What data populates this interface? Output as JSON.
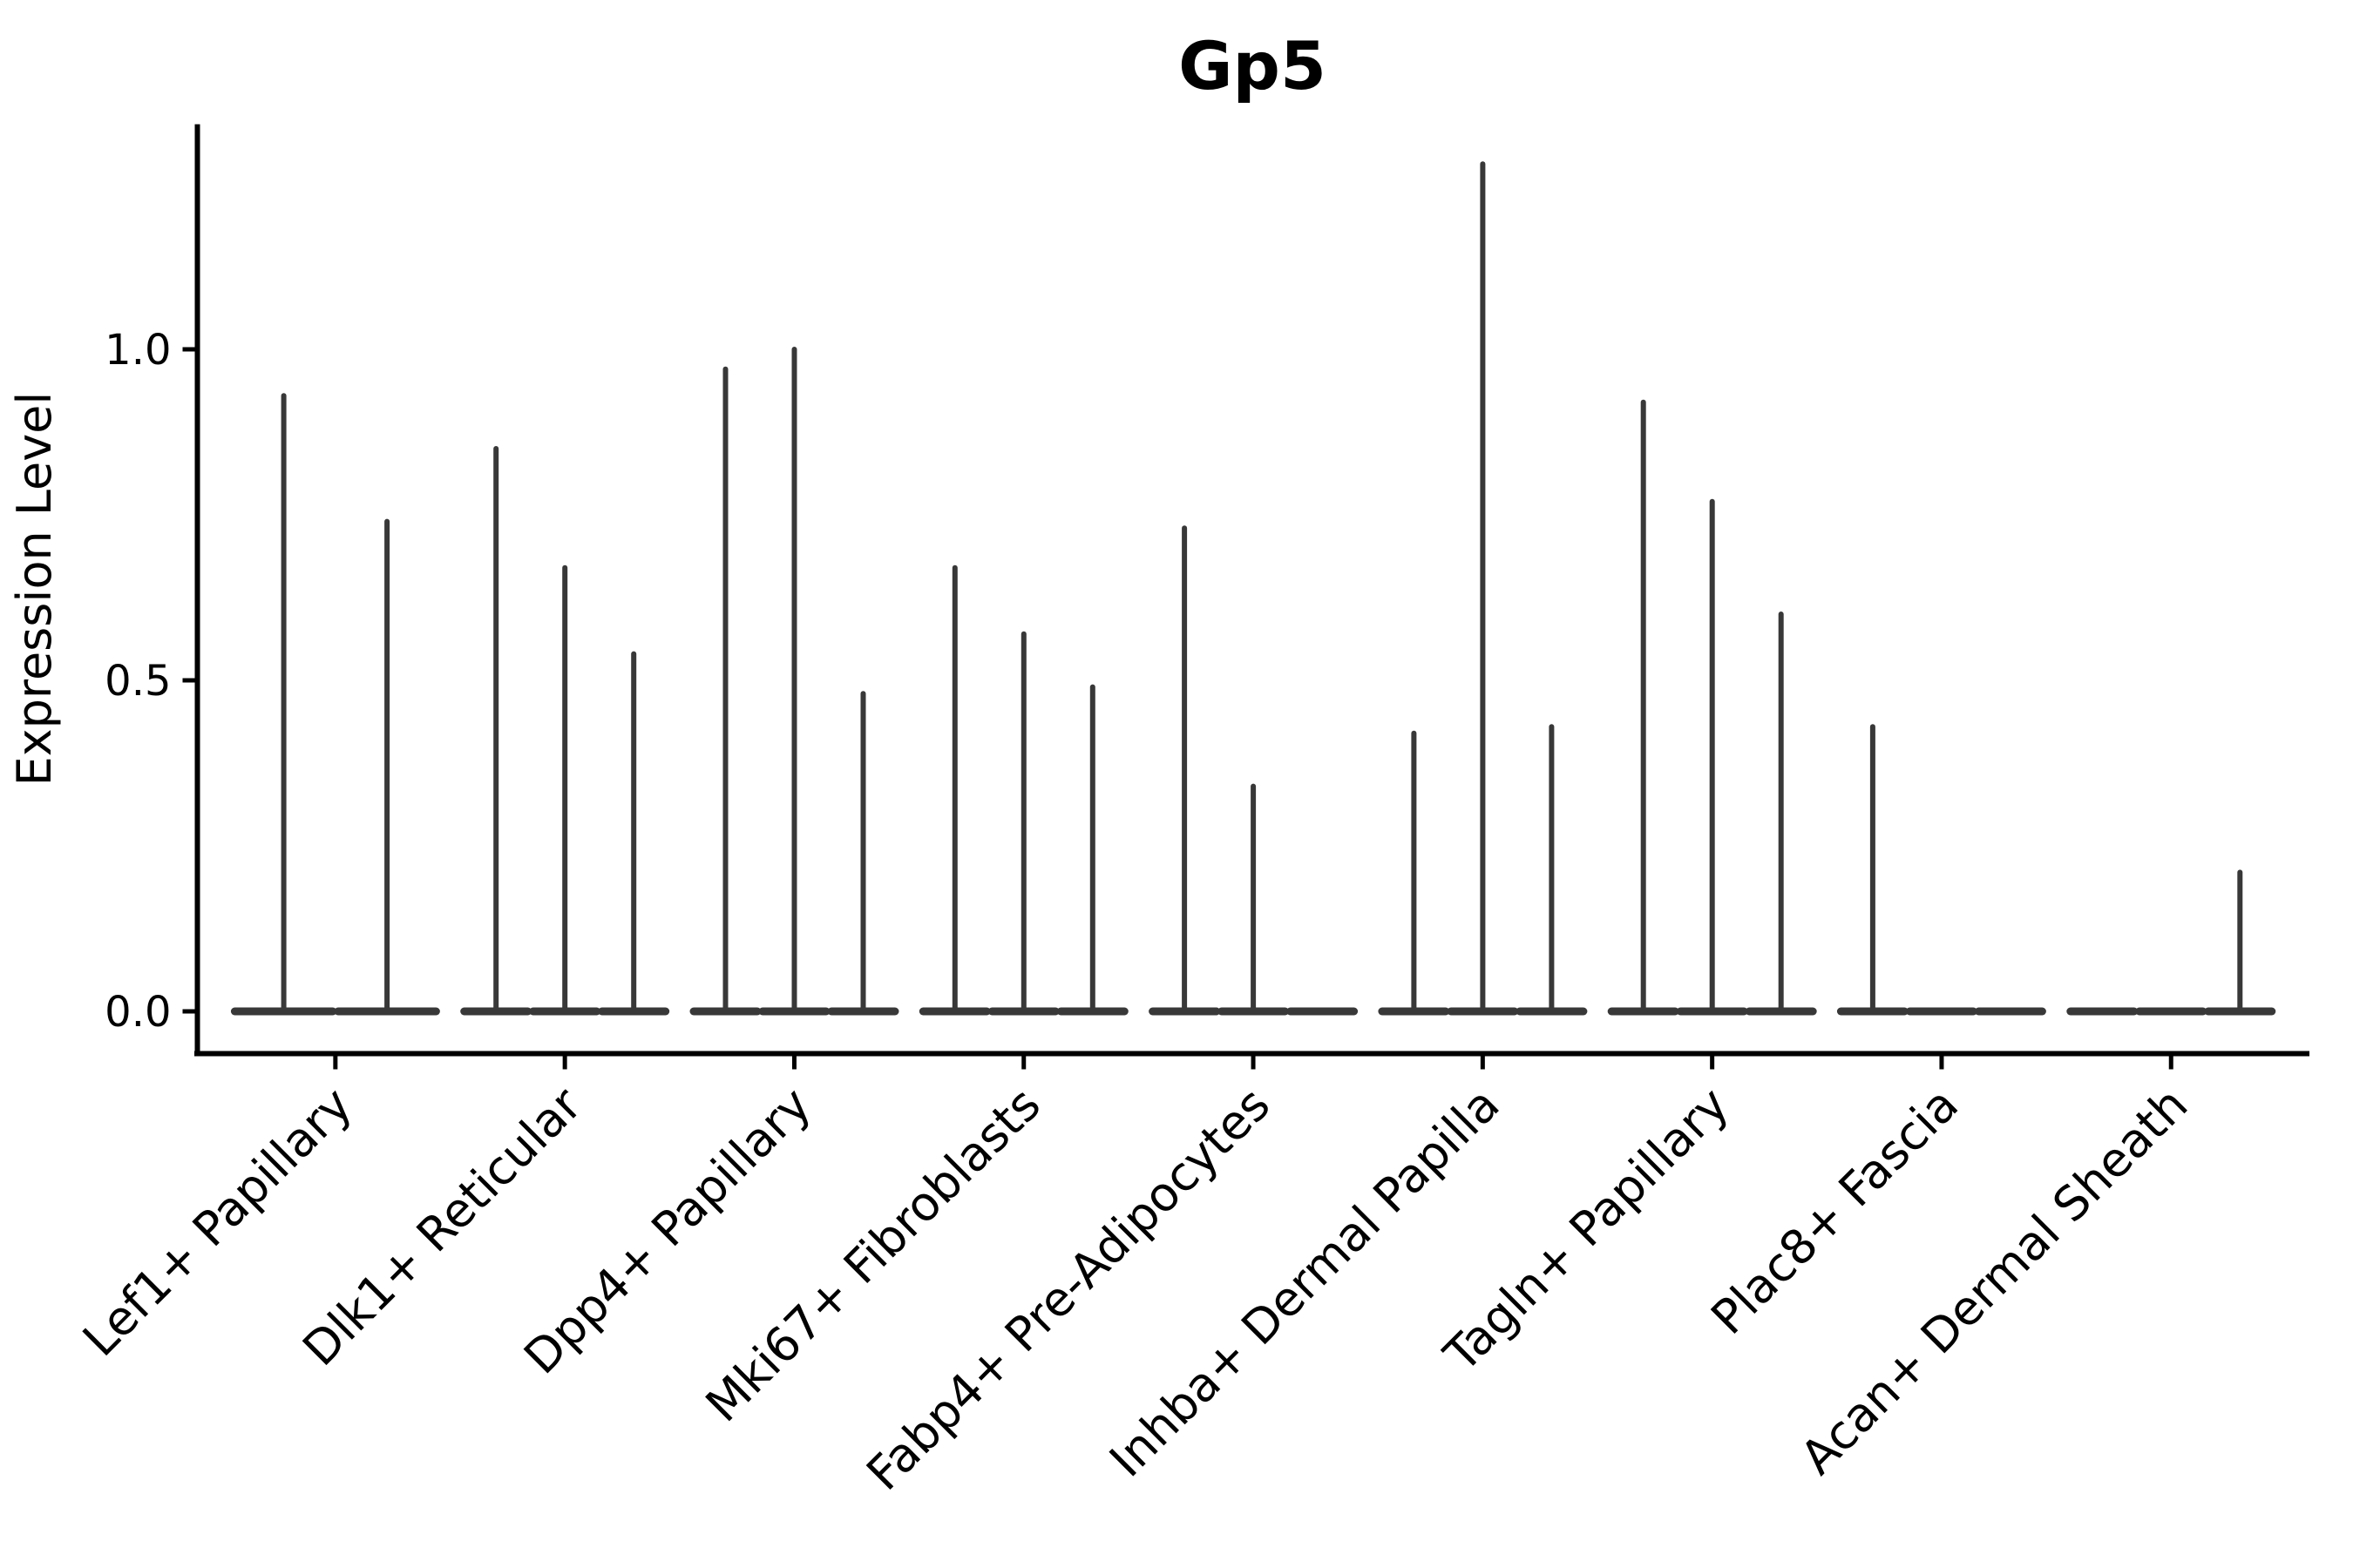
{
  "title": "Gp5",
  "y_axis": {
    "label": "Expression Level",
    "tick_labels": [
      "0.0",
      "0.5",
      "1.0"
    ],
    "tick_values": [
      0.0,
      0.5,
      1.0
    ]
  },
  "x_axis": {
    "label": "",
    "tick_labels": [
      "Lef1+ Papillary",
      "Dlk1+ Reticular",
      "Dpp4+ Papillary",
      "Mki67+ Fibroblasts",
      "Fabp4+ Pre-Adipocytes",
      "Inhba+ Dermal Papilla",
      "Tagln+ Papillary",
      "Plac8+ Fascia",
      "Acan+ Dermal Sheath"
    ]
  },
  "colors": {
    "violin": "#383838",
    "axis": "#000000",
    "background": "#ffffff"
  },
  "chart_data": {
    "type": "violin",
    "title": "Gp5",
    "xlabel": "",
    "ylabel": "Expression Level",
    "ylim": [
      0,
      1.34
    ],
    "yticks": [
      0.0,
      0.5,
      1.0
    ],
    "grid": false,
    "legend_position": "none",
    "style_note": "sparse single-cell expression violins: wide flat base at 0 with narrow spike up to group max",
    "categories": [
      "Lef1+ Papillary",
      "Dlk1+ Reticular",
      "Dpp4+ Papillary",
      "Mki67+ Fibroblasts",
      "Fabp4+ Pre-Adipocytes",
      "Inhba+ Dermal Papilla",
      "Tagln+ Papillary",
      "Plac8+ Fascia",
      "Acan+ Dermal Sheath"
    ],
    "series": [
      {
        "category": "Lef1+ Papillary",
        "group_max_expression": [
          0.93,
          0.74
        ]
      },
      {
        "category": "Dlk1+ Reticular",
        "group_max_expression": [
          0.85,
          0.67,
          0.54
        ]
      },
      {
        "category": "Dpp4+ Papillary",
        "group_max_expression": [
          0.97,
          1.0,
          0.48
        ]
      },
      {
        "category": "Mki67+ Fibroblasts",
        "group_max_expression": [
          0.67,
          0.57,
          0.49
        ]
      },
      {
        "category": "Fabp4+ Pre-Adipocytes",
        "group_max_expression": [
          0.73,
          0.34,
          0.0
        ]
      },
      {
        "category": "Inhba+ Dermal Papilla",
        "group_max_expression": [
          0.42,
          1.28,
          0.43
        ]
      },
      {
        "category": "Tagln+ Papillary",
        "group_max_expression": [
          0.92,
          0.77,
          0.6
        ]
      },
      {
        "category": "Plac8+ Fascia",
        "group_max_expression": [
          0.43,
          0.0,
          0.0
        ]
      },
      {
        "category": "Acan+ Dermal Sheath",
        "group_max_expression": [
          0.0,
          0.0,
          0.21
        ]
      }
    ]
  }
}
